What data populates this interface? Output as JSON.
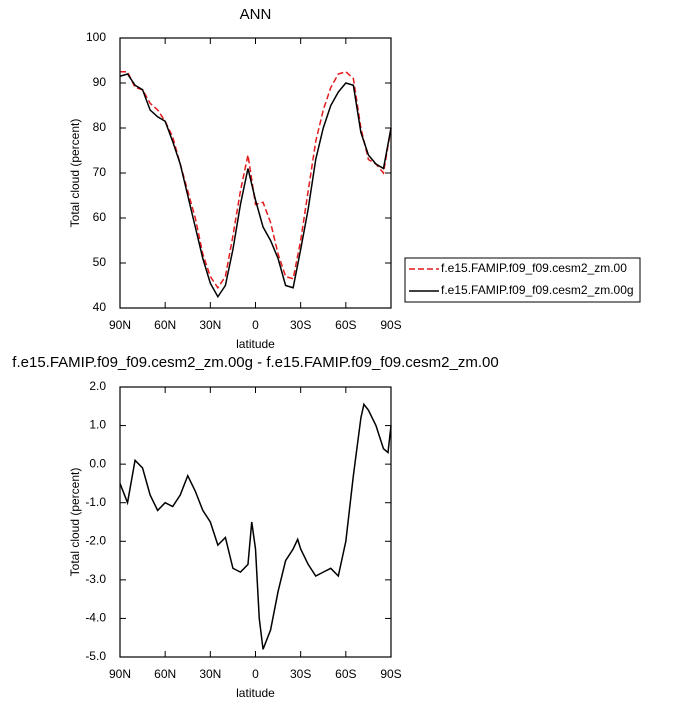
{
  "chart_data": [
    {
      "type": "line",
      "title": "ANN",
      "xlabel": "latitude",
      "ylabel": "Total cloud (percent)",
      "x": [
        90,
        85,
        80,
        75,
        70,
        65,
        60,
        55,
        50,
        45,
        40,
        35,
        30,
        25,
        20,
        15,
        10,
        5,
        0,
        -5,
        -10,
        -15,
        -20,
        -25,
        -30,
        -35,
        -40,
        -45,
        -50,
        -55,
        -60,
        -65,
        -70,
        -75,
        -80,
        -85,
        -90
      ],
      "series": [
        {
          "name": "f.e15.FAMIP.f09_f09.cesm2_zm.00",
          "color": "#e41a1c",
          "dash": true,
          "values": [
            92.5,
            92.5,
            89,
            88.5,
            85.5,
            84,
            81.5,
            78,
            72,
            66,
            60,
            52,
            47,
            44.5,
            47,
            56,
            66,
            74,
            63,
            63.5,
            59,
            52,
            47,
            46.5,
            55,
            66,
            77,
            84,
            89,
            92,
            92.5,
            91,
            80,
            73,
            72,
            70,
            80
          ]
        },
        {
          "name": "f.e15.FAMIP.f09_f09.cesm2_zm.00g",
          "color": "#000000",
          "dash": false,
          "values": [
            91.5,
            92,
            89.5,
            88.5,
            84,
            82.5,
            81.5,
            77,
            72,
            65,
            58,
            51,
            45.5,
            42.5,
            45,
            53,
            63,
            71,
            64,
            58,
            55,
            51,
            45,
            44.5,
            53,
            62,
            73,
            80,
            85,
            88,
            90,
            89.5,
            79,
            74,
            72,
            71,
            80
          ]
        }
      ],
      "xlim": [
        90,
        -90
      ],
      "xticks": [
        {
          "value": 90,
          "label": "90N"
        },
        {
          "value": 60,
          "label": "60N"
        },
        {
          "value": 30,
          "label": "30N"
        },
        0,
        {
          "value": -30,
          "label": "30S"
        },
        {
          "value": -60,
          "label": "60S"
        },
        {
          "value": -90,
          "label": "90S"
        }
      ],
      "ylim": [
        40,
        100
      ],
      "yticks": [
        40,
        50,
        60,
        70,
        80,
        90,
        100
      ],
      "legend": "outside-right"
    },
    {
      "type": "line",
      "title": "f.e15.FAMIP.f09_f09.cesm2_zm.00g - f.e15.FAMIP.f09_f09.cesm2_zm.00",
      "xlabel": "latitude",
      "ylabel": "Total cloud (percent)",
      "x": [
        90,
        85,
        80,
        75,
        70,
        65,
        60,
        55,
        50,
        45,
        40,
        35,
        30,
        25,
        20,
        15,
        10,
        5,
        2.5,
        0,
        -2.5,
        -5,
        -10,
        -15,
        -20,
        -25,
        -28,
        -30,
        -35,
        -40,
        -45,
        -50,
        -55,
        -60,
        -65,
        -70,
        -72,
        -75,
        -80,
        -85,
        -88,
        -90
      ],
      "series": [
        {
          "color": "#000000",
          "dash": false,
          "values": [
            -0.5,
            -1.0,
            0.1,
            -0.1,
            -0.8,
            -1.2,
            -1.0,
            -1.1,
            -0.8,
            -0.3,
            -0.7,
            -1.2,
            -1.5,
            -2.1,
            -1.9,
            -2.7,
            -2.8,
            -2.6,
            -1.5,
            -2.2,
            -4.0,
            -4.8,
            -4.3,
            -3.3,
            -2.5,
            -2.2,
            -1.95,
            -2.2,
            -2.6,
            -2.9,
            -2.8,
            -2.7,
            -2.9,
            -2.0,
            -0.3,
            1.2,
            1.55,
            1.4,
            1.0,
            0.4,
            0.3,
            1.0
          ]
        }
      ],
      "xlim": [
        90,
        -90
      ],
      "xticks": [
        {
          "value": 90,
          "label": "90N"
        },
        {
          "value": 60,
          "label": "60N"
        },
        {
          "value": 30,
          "label": "30N"
        },
        0,
        {
          "value": -30,
          "label": "30S"
        },
        {
          "value": -60,
          "label": "60S"
        },
        {
          "value": -90,
          "label": "90S"
        }
      ],
      "ylim": [
        -5,
        2
      ],
      "yticks": [
        {
          "value": -5,
          "label": "-5.0"
        },
        {
          "value": -4,
          "label": "-4.0"
        },
        {
          "value": -3,
          "label": "-3.0"
        },
        {
          "value": -2,
          "label": "-2.0"
        },
        {
          "value": -1,
          "label": "-1.0"
        },
        {
          "value": 0,
          "label": "0.0"
        },
        {
          "value": 1,
          "label": "1.0"
        },
        {
          "value": 2,
          "label": "2.0"
        }
      ]
    }
  ]
}
